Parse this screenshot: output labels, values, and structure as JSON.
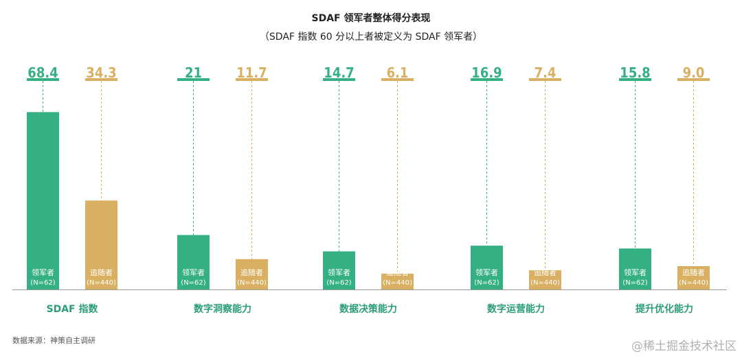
{
  "title": "SDAF 领军者整体得分表现",
  "subtitle": "（SDAF 指数 60 分以上者被定义为 SDAF 领军者）",
  "source": "数据来源：神策自主调研",
  "watermark": "@稀土掘金技术社区",
  "colors": {
    "leader": "#35b083",
    "follower": "#d9b061",
    "category": "#2a9d76"
  },
  "chart_data": {
    "type": "bar",
    "categories": [
      "SDAF 指数",
      "数字洞察能力",
      "数据决策能力",
      "数字运营能力",
      "提升优化能力"
    ],
    "series": [
      {
        "name": "领军者",
        "sample": "(N=62)",
        "values": [
          68.4,
          21,
          14.7,
          16.9,
          15.8
        ],
        "labels": [
          "68.4",
          "21",
          "14.7",
          "16.9",
          "15.8"
        ]
      },
      {
        "name": "追随者",
        "sample": "(N=440)",
        "values": [
          34.3,
          11.7,
          6.1,
          7.4,
          9.0
        ],
        "labels": [
          "34.3",
          "11.7",
          "6.1",
          "7.4",
          "9.0"
        ]
      }
    ]
  }
}
